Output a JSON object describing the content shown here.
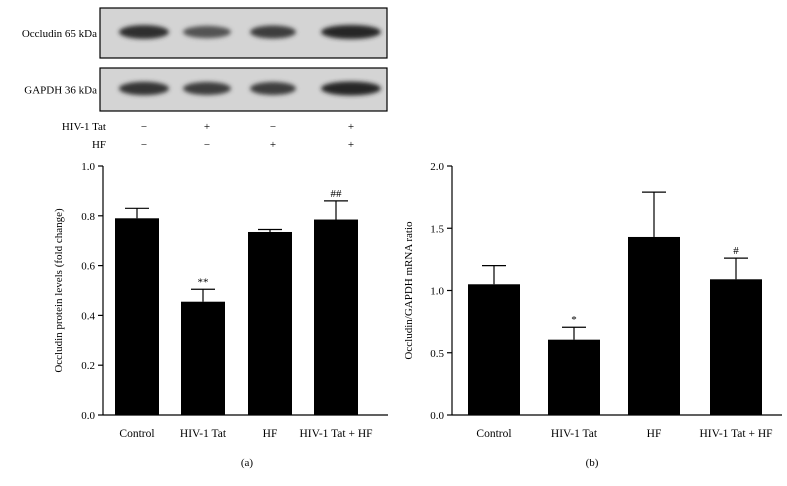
{
  "blot": {
    "rows": [
      {
        "label": "Occludin 65 kDa",
        "intensity": [
          0.95,
          0.7,
          0.85,
          1.0
        ]
      },
      {
        "label": "GAPDH 36 kDa",
        "intensity": [
          0.9,
          0.85,
          0.85,
          1.0
        ]
      }
    ],
    "treatment_rows": [
      {
        "label": "HIV-1 Tat",
        "signs": [
          "−",
          "+",
          "−",
          "+"
        ]
      },
      {
        "label": "HF",
        "signs": [
          "−",
          "−",
          "+",
          "+"
        ]
      }
    ]
  },
  "chart_data": [
    {
      "type": "bar",
      "panel_label": "(a)",
      "categories": [
        "Control",
        "HIV-1 Tat",
        "HF",
        "HIV-1 Tat + HF"
      ],
      "values": [
        0.79,
        0.455,
        0.735,
        0.785
      ],
      "errors": [
        0.04,
        0.05,
        0.01,
        0.075
      ],
      "annotations": [
        "",
        "**",
        "",
        "##"
      ],
      "title": "",
      "xlabel": "",
      "ylabel": "Occludin protein levels (fold change)",
      "ylim": [
        0,
        1.0
      ],
      "yticks": [
        0.0,
        0.2,
        0.4,
        0.6,
        0.8,
        1.0
      ],
      "ytick_labels": [
        "0.0",
        "0.2",
        "0.4",
        "0.6",
        "0.8",
        "1.0"
      ],
      "grid": false,
      "bar_color": "#000000"
    },
    {
      "type": "bar",
      "panel_label": "(b)",
      "categories": [
        "Control",
        "HIV-1 Tat",
        "HF",
        "HIV-1 Tat + HF"
      ],
      "values": [
        1.05,
        0.605,
        1.43,
        1.09
      ],
      "errors": [
        0.15,
        0.1,
        0.36,
        0.17
      ],
      "annotations": [
        "",
        "*",
        "",
        "#"
      ],
      "title": "",
      "xlabel": "",
      "ylabel": "Occludin/GAPDH mRNA ratio",
      "ylim": [
        0,
        2.0
      ],
      "yticks": [
        0.0,
        0.5,
        1.0,
        1.5,
        2.0
      ],
      "ytick_labels": [
        "0.0",
        "0.5",
        "1.0",
        "1.5",
        "2.0"
      ],
      "grid": false,
      "bar_color": "#000000"
    }
  ]
}
